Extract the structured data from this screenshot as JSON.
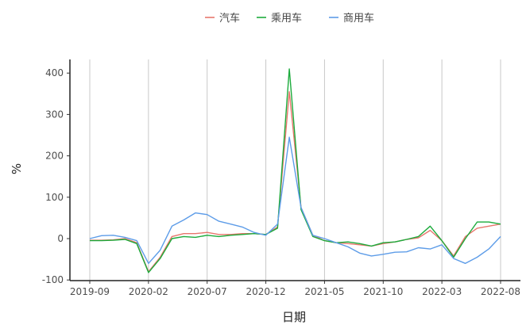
{
  "chart_data": {
    "type": "line",
    "title": "",
    "xlabel": "日期",
    "ylabel": "%",
    "ylim": [
      -100,
      420
    ],
    "yticks": [
      -100,
      0,
      100,
      200,
      300,
      400
    ],
    "xtick_labels": [
      "2019-09",
      "2020-02",
      "2020-07",
      "2020-12",
      "2021-05",
      "2021-10",
      "2022-03",
      "2022-08"
    ],
    "x": [
      "2019-09",
      "2019-10",
      "2019-11",
      "2019-12",
      "2020-01",
      "2020-02",
      "2020-03",
      "2020-04",
      "2020-05",
      "2020-06",
      "2020-07",
      "2020-08",
      "2020-09",
      "2020-10",
      "2020-11",
      "2020-12",
      "2021-01",
      "2021-02",
      "2021-03",
      "2021-04",
      "2021-05",
      "2021-06",
      "2021-07",
      "2021-08",
      "2021-09",
      "2021-10",
      "2021-11",
      "2021-12",
      "2022-01",
      "2022-02",
      "2022-03",
      "2022-04",
      "2022-05",
      "2022-06",
      "2022-07",
      "2022-08"
    ],
    "grid": "vertical",
    "legend_position": "top",
    "series": [
      {
        "name": "汽车",
        "color": "#e8766d",
        "values": [
          -4,
          -4,
          -3,
          0,
          -10,
          -80,
          -45,
          5,
          12,
          12,
          15,
          10,
          10,
          12,
          12,
          10,
          28,
          355,
          75,
          8,
          -5,
          -10,
          -12,
          -15,
          -18,
          -12,
          -8,
          -2,
          2,
          20,
          -5,
          -42,
          5,
          25,
          30,
          35
        ]
      },
      {
        "name": "乘用车",
        "color": "#1cab3c",
        "values": [
          -5,
          -5,
          -4,
          -2,
          -12,
          -82,
          -48,
          0,
          5,
          3,
          8,
          5,
          8,
          10,
          12,
          10,
          25,
          410,
          70,
          5,
          -5,
          -10,
          -8,
          -12,
          -18,
          -10,
          -8,
          -2,
          5,
          30,
          -5,
          -45,
          0,
          40,
          40,
          35
        ]
      },
      {
        "name": "商用车",
        "color": "#5d9ce8",
        "values": [
          0,
          7,
          8,
          3,
          -5,
          -60,
          -28,
          30,
          45,
          62,
          58,
          42,
          35,
          28,
          15,
          8,
          35,
          245,
          75,
          8,
          0,
          -10,
          -20,
          -35,
          -42,
          -38,
          -33,
          -32,
          -22,
          -25,
          -15,
          -48,
          -60,
          -45,
          -25,
          5
        ]
      }
    ]
  }
}
